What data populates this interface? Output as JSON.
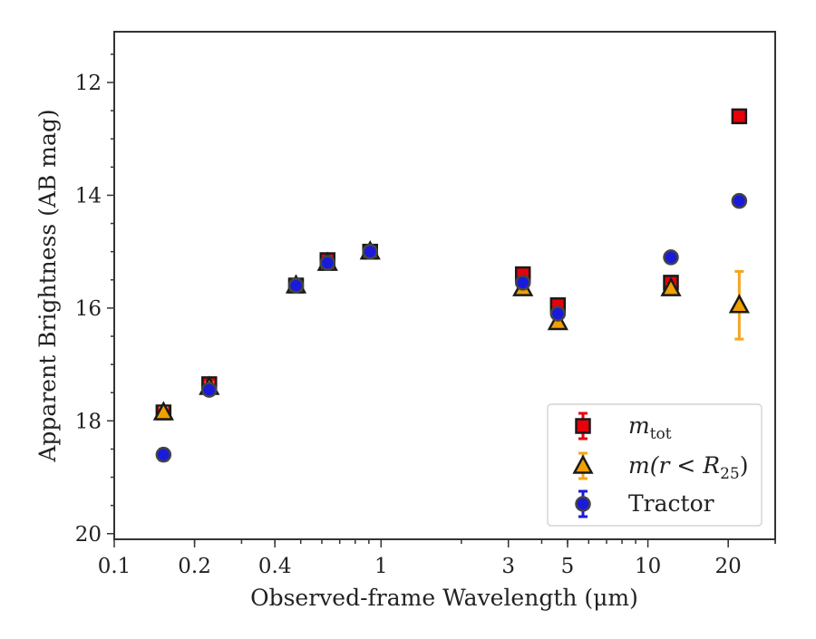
{
  "chart_data": {
    "type": "scatter",
    "title": "",
    "xlabel": "Observed-frame Wavelength (μm)",
    "ylabel": "Apparent Brightness (AB mag)",
    "xscale": "log",
    "yscale": "linear",
    "y_inverted": true,
    "xlim": [
      0.1,
      30
    ],
    "ylim": [
      20.1,
      11.1
    ],
    "xticks": [
      {
        "value": 0.1,
        "label": "0.1"
      },
      {
        "value": 0.2,
        "label": "0.2"
      },
      {
        "value": 0.4,
        "label": "0.4"
      },
      {
        "value": 1,
        "label": "1"
      },
      {
        "value": 3,
        "label": "3"
      },
      {
        "value": 5,
        "label": "5"
      },
      {
        "value": 10,
        "label": "10"
      },
      {
        "value": 20,
        "label": "20"
      }
    ],
    "yticks": [
      {
        "value": 12,
        "label": "12"
      },
      {
        "value": 14,
        "label": "14"
      },
      {
        "value": 16,
        "label": "16"
      },
      {
        "value": 18,
        "label": "18"
      },
      {
        "value": 20,
        "label": "20"
      }
    ],
    "grid": false,
    "legend_position": "lower-right",
    "series": [
      {
        "name": "m_tot",
        "legend_label": "m",
        "legend_sub": "tot",
        "marker": "square",
        "color": "#e8000b",
        "error_color": "#e8000b",
        "points": [
          {
            "x": 0.153,
            "y": 17.85,
            "err": 0.1
          },
          {
            "x": 0.227,
            "y": 17.35,
            "err": 0.1
          },
          {
            "x": 0.48,
            "y": 15.6,
            "err": 0.08
          },
          {
            "x": 0.63,
            "y": 15.15,
            "err": 0.08
          },
          {
            "x": 0.91,
            "y": 15.0,
            "err": 0.05
          },
          {
            "x": 3.4,
            "y": 15.4,
            "err": 0.05
          },
          {
            "x": 4.6,
            "y": 15.95,
            "err": 0.05
          },
          {
            "x": 12.2,
            "y": 15.55,
            "err": 0.05
          },
          {
            "x": 22.0,
            "y": 12.6,
            "err": 0.05
          }
        ]
      },
      {
        "name": "m(r<R25)",
        "legend_label": "m(r < R",
        "legend_sub": "25",
        "legend_suffix": ")",
        "marker": "triangle",
        "color": "#f0a000",
        "error_color": "#f5a623",
        "points": [
          {
            "x": 0.153,
            "y": 17.85,
            "err": 0.08
          },
          {
            "x": 0.227,
            "y": 17.4,
            "err": 0.08
          },
          {
            "x": 0.48,
            "y": 15.6,
            "err": 0.06
          },
          {
            "x": 0.63,
            "y": 15.2,
            "err": 0.06
          },
          {
            "x": 0.91,
            "y": 15.0,
            "err": 0.05
          },
          {
            "x": 3.4,
            "y": 15.65,
            "err": 0.05
          },
          {
            "x": 4.6,
            "y": 16.25,
            "err": 0.05
          },
          {
            "x": 12.2,
            "y": 15.65,
            "err": 0.05
          },
          {
            "x": 22.0,
            "y": 15.95,
            "err": 0.6
          }
        ]
      },
      {
        "name": "Tractor",
        "legend_label": "Tractor",
        "marker": "circle",
        "color": "#1a1adb",
        "error_color": "#1a1adb",
        "points": [
          {
            "x": 0.153,
            "y": 18.6,
            "err": 0.1
          },
          {
            "x": 0.227,
            "y": 17.45,
            "err": 0.08
          },
          {
            "x": 0.48,
            "y": 15.6,
            "err": 0.06
          },
          {
            "x": 0.63,
            "y": 15.2,
            "err": 0.06
          },
          {
            "x": 0.91,
            "y": 15.0,
            "err": 0.05
          },
          {
            "x": 3.4,
            "y": 15.55,
            "err": 0.05
          },
          {
            "x": 4.6,
            "y": 16.1,
            "err": 0.06
          },
          {
            "x": 12.2,
            "y": 15.1,
            "err": 0.05
          },
          {
            "x": 22.0,
            "y": 14.1,
            "err": 0.05
          }
        ]
      }
    ]
  }
}
